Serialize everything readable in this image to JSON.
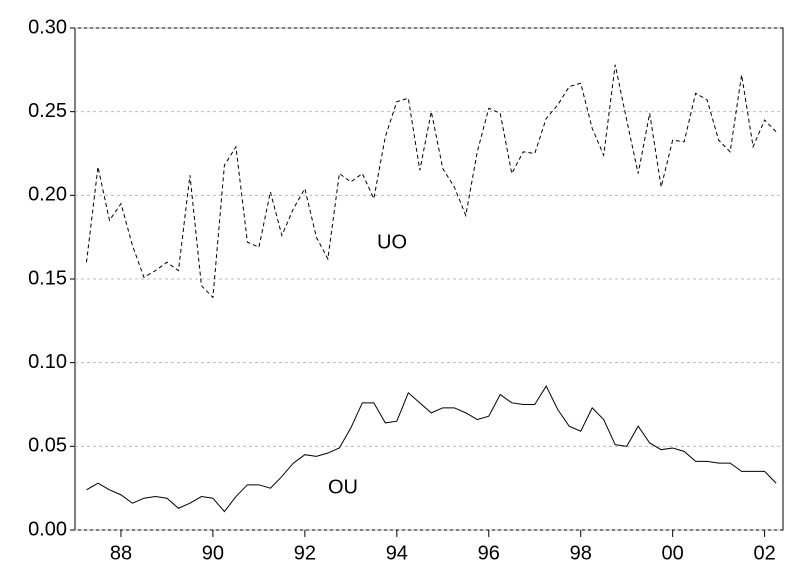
{
  "chart_data": {
    "type": "line",
    "x": [
      1987.25,
      1987.5,
      1987.75,
      1988,
      1988.25,
      1988.5,
      1988.75,
      1989,
      1989.25,
      1989.5,
      1989.75,
      1990,
      1990.25,
      1990.5,
      1990.75,
      1991,
      1991.25,
      1991.5,
      1991.75,
      1992,
      1992.25,
      1992.5,
      1992.75,
      1993,
      1993.25,
      1993.5,
      1993.75,
      1994,
      1994.25,
      1994.5,
      1994.75,
      1995,
      1995.25,
      1995.5,
      1995.75,
      1996,
      1996.25,
      1996.5,
      1996.75,
      1997,
      1997.25,
      1997.5,
      1997.75,
      1998,
      1998.25,
      1998.5,
      1998.75,
      1999,
      1999.25,
      1999.5,
      1999.75,
      2000,
      2000.25,
      2000.5,
      2000.75,
      2001,
      2001.25,
      2001.5,
      2001.75,
      2002,
      2002.25
    ],
    "series": [
      {
        "name": "UO",
        "color": "#000000",
        "style": "dashed",
        "values": [
          0.16,
          0.217,
          0.185,
          0.195,
          0.17,
          0.151,
          0.155,
          0.16,
          0.155,
          0.212,
          0.146,
          0.139,
          0.218,
          0.229,
          0.172,
          0.169,
          0.202,
          0.176,
          0.192,
          0.204,
          0.175,
          0.162,
          0.213,
          0.208,
          0.213,
          0.198,
          0.235,
          0.256,
          0.258,
          0.215,
          0.25,
          0.216,
          0.205,
          0.188,
          0.226,
          0.252,
          0.249,
          0.213,
          0.226,
          0.225,
          0.246,
          0.254,
          0.265,
          0.267,
          0.24,
          0.224,
          0.278,
          0.245,
          0.213,
          0.249,
          0.205,
          0.233,
          0.232,
          0.261,
          0.257,
          0.233,
          0.226,
          0.272,
          0.229,
          0.245,
          0.238
        ]
      },
      {
        "name": "OU",
        "color": "#000000",
        "style": "solid",
        "values": [
          0.024,
          0.028,
          0.024,
          0.021,
          0.016,
          0.019,
          0.02,
          0.019,
          0.013,
          0.016,
          0.02,
          0.019,
          0.011,
          0.02,
          0.027,
          0.027,
          0.025,
          0.032,
          0.04,
          0.045,
          0.044,
          0.046,
          0.049,
          0.061,
          0.076,
          0.076,
          0.064,
          0.065,
          0.082,
          0.076,
          0.07,
          0.073,
          0.073,
          0.07,
          0.066,
          0.068,
          0.081,
          0.076,
          0.075,
          0.075,
          0.086,
          0.072,
          0.062,
          0.059,
          0.073,
          0.066,
          0.051,
          0.05,
          0.062,
          0.052,
          0.048,
          0.049,
          0.047,
          0.041,
          0.041,
          0.04,
          0.04,
          0.035,
          0.035,
          0.035,
          0.028
        ]
      }
    ],
    "xlim": [
      1987.0,
      2002.4
    ],
    "xticks": [
      {
        "value": 1988,
        "label": "88"
      },
      {
        "value": 1990,
        "label": "90"
      },
      {
        "value": 1992,
        "label": "92"
      },
      {
        "value": 1994,
        "label": "94"
      },
      {
        "value": 1996,
        "label": "96"
      },
      {
        "value": 1998,
        "label": "98"
      },
      {
        "value": 2000,
        "label": "00"
      },
      {
        "value": 2002,
        "label": "02"
      }
    ],
    "ylim": [
      0,
      0.3
    ],
    "yticks": [
      {
        "value": 0,
        "label": "0.00"
      },
      0.05,
      {
        "value": 0.1,
        "label": "0.10"
      },
      0.15,
      {
        "value": 0.2,
        "label": "0.20"
      },
      0.25,
      {
        "value": 0.3,
        "label": "0.30"
      }
    ],
    "grid": true
  }
}
